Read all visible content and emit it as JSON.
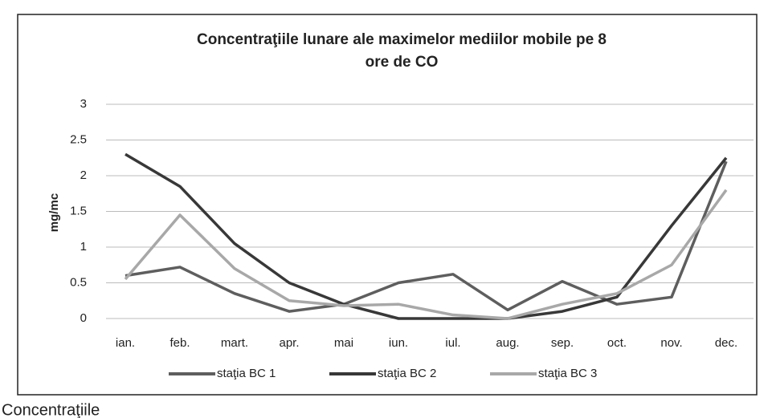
{
  "chart_data": {
    "type": "line",
    "title": [
      "Concentraţiile lunare ale maximelor mediilor mobile pe 8",
      "ore de CO"
    ],
    "y_label": "mg/mc",
    "categories": [
      "ian.",
      "feb.",
      "mart.",
      "apr.",
      "mai",
      "iun.",
      "iul.",
      "aug.",
      "sep.",
      "oct.",
      "nov.",
      "dec."
    ],
    "series": [
      {
        "name": "staţia BC 1",
        "color": "#5e5e5e",
        "values": [
          0.6,
          0.72,
          0.35,
          0.1,
          0.2,
          0.5,
          0.62,
          0.12,
          0.52,
          0.2,
          0.3,
          2.2
        ]
      },
      {
        "name": "staţia BC 2",
        "color": "#383838",
        "values": [
          2.3,
          1.85,
          1.05,
          0.5,
          0.2,
          0,
          0,
          0,
          0.1,
          0.3,
          1.3,
          2.25
        ]
      },
      {
        "name": "staţia BC 3",
        "color": "#a8a8a8",
        "values": [
          0.55,
          1.45,
          0.7,
          0.25,
          0.18,
          0.2,
          0.05,
          0,
          0.2,
          0.35,
          0.75,
          1.8
        ]
      }
    ],
    "ylim": [
      0,
      3
    ],
    "yticks": [
      0,
      0.5,
      1,
      1.5,
      2,
      2.5,
      3
    ],
    "grid": true,
    "legend": "bottom",
    "caption": "Concentraţiile"
  }
}
